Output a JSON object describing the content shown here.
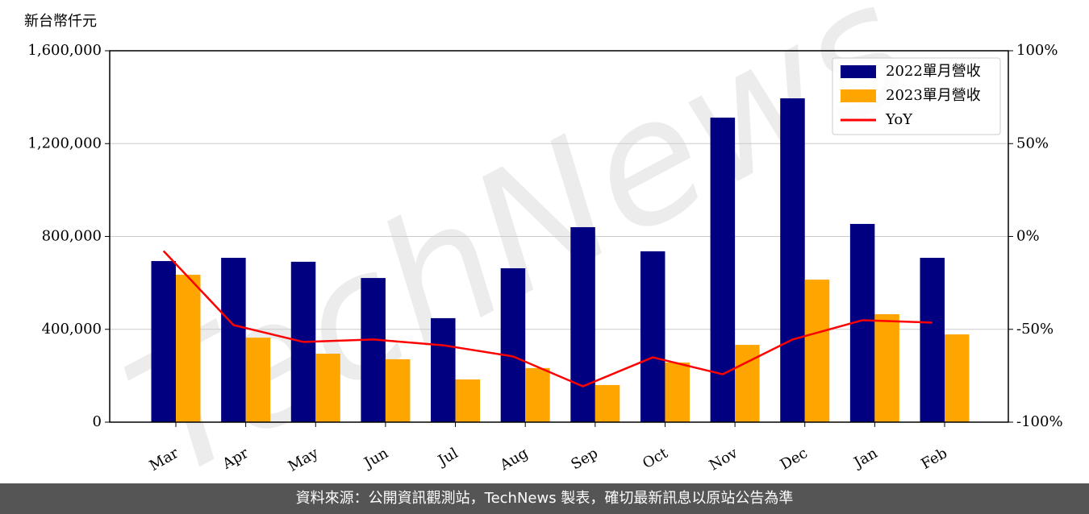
{
  "chart_data": {
    "type": "bar",
    "y_label": "新台幣仟元",
    "categories": [
      "Mar",
      "Apr",
      "May",
      "Jun",
      "Jul",
      "Aug",
      "Sep",
      "Oct",
      "Nov",
      "Dec",
      "Jan",
      "Feb"
    ],
    "series": [
      {
        "name": "2022單月營收",
        "type": "bar",
        "color": "#000080",
        "values": [
          694000,
          708000,
          691000,
          621000,
          448000,
          663000,
          840000,
          736000,
          1312000,
          1395000,
          854000,
          708000
        ]
      },
      {
        "name": "2023單月營收",
        "type": "bar",
        "color": "#FFA500",
        "values": [
          635000,
          364000,
          295000,
          271000,
          184000,
          233000,
          160000,
          257000,
          333000,
          614000,
          465000,
          378000
        ]
      },
      {
        "name": "YoY",
        "type": "line",
        "axis": "y2",
        "color": "#FF0000",
        "values": [
          -7.8,
          -47.7,
          -56.8,
          -55.5,
          -58.6,
          -64.6,
          -80.7,
          -65.1,
          -74.2,
          -55.5,
          -45.1,
          -46.4
        ]
      }
    ],
    "ylim": [
      0,
      1600000
    ],
    "yticks": [
      0,
      {
        "value": 400000,
        "label": "400,000"
      },
      {
        "value": 800000,
        "label": "800,000"
      },
      {
        "value": 1200000,
        "label": "1,200,000"
      },
      {
        "value": 1600000,
        "label": "1,600,000"
      }
    ],
    "y2lim": [
      -100,
      100
    ],
    "y2ticks": [
      {
        "value": -100,
        "label": "-100%"
      },
      {
        "value": -50,
        "label": "-50%"
      },
      {
        "value": 0,
        "label": "0%"
      },
      {
        "value": 50,
        "label": "50%"
      },
      {
        "value": 100,
        "label": "100%"
      }
    ],
    "grid": true,
    "legend": "upper right",
    "watermark": "TechNews"
  },
  "footer": "資料來源：公開資訊觀測站，TechNews 製表，確切最新訊息以原站公告為準"
}
